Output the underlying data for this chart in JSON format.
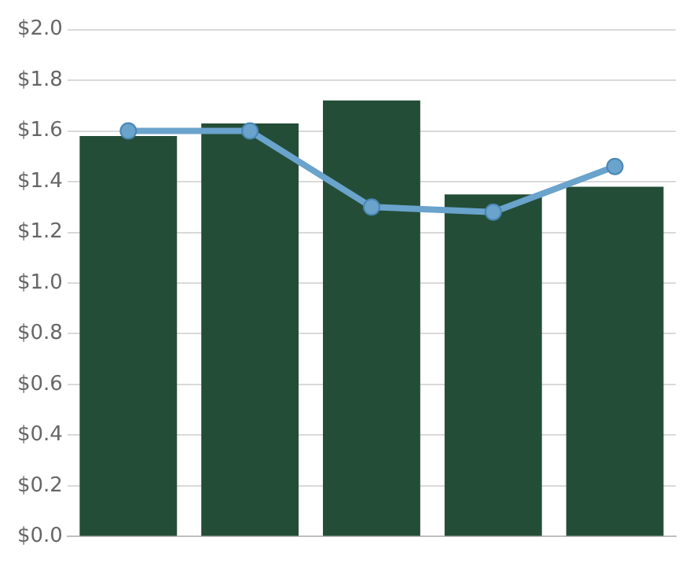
{
  "chart_data": {
    "type": "bar",
    "categories": [
      null,
      null,
      null,
      null,
      null
    ],
    "series": [
      {
        "color": "#234d37",
        "values": [
          1.58,
          1.63,
          1.72,
          1.35,
          1.38
        ]
      },
      {
        "type": "line",
        "color": "#6aa3cc",
        "values": [
          1.6,
          1.6,
          1.3,
          1.28,
          1.46
        ],
        "marker": "circle"
      }
    ],
    "ylim": [
      0,
      2
    ],
    "yticks": [
      {
        "value": 0,
        "label": "$0.0"
      },
      {
        "value": 0.2,
        "label": "$0.2"
      },
      {
        "value": 0.4,
        "label": "$0.4"
      },
      {
        "value": 0.6,
        "label": "$0.6"
      },
      {
        "value": 0.8,
        "label": "$0.8"
      },
      {
        "value": 1,
        "label": "$1.0"
      },
      {
        "value": 1.2,
        "label": "$1.2"
      },
      {
        "value": 1.4,
        "label": "$1.4"
      },
      {
        "value": 1.6,
        "label": "$1.6"
      },
      {
        "value": 1.8,
        "label": "$1.8"
      },
      {
        "value": 2,
        "label": "$2.0"
      }
    ],
    "grid": "y",
    "legend": false,
    "tick_labels": "y"
  }
}
